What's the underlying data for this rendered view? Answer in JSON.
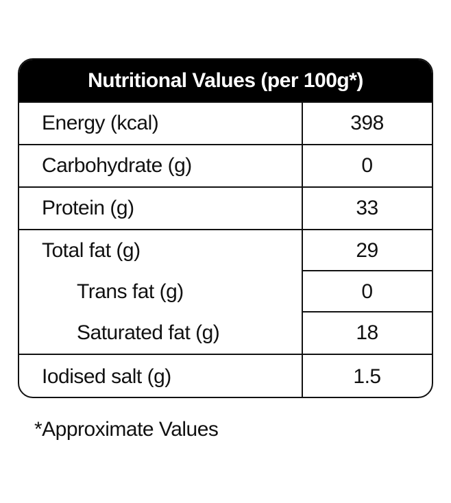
{
  "table": {
    "title": "Nutritional Values (per 100g*)",
    "rows": [
      {
        "label": "Energy (kcal)",
        "value": "398"
      },
      {
        "label": "Carbohydrate (g)",
        "value": "0"
      },
      {
        "label": "Protein (g)",
        "value": "33"
      },
      {
        "label": "Total fat (g)",
        "value": "29"
      },
      {
        "label": "Trans fat (g)",
        "value": "0"
      },
      {
        "label": "Saturated fat (g)",
        "value": "18"
      },
      {
        "label": "Iodised salt (g)",
        "value": "1.5"
      }
    ]
  },
  "footnote": "*Approximate Values",
  "colors": {
    "header_bg": "#000000",
    "header_text": "#ffffff",
    "border": "#111111"
  }
}
